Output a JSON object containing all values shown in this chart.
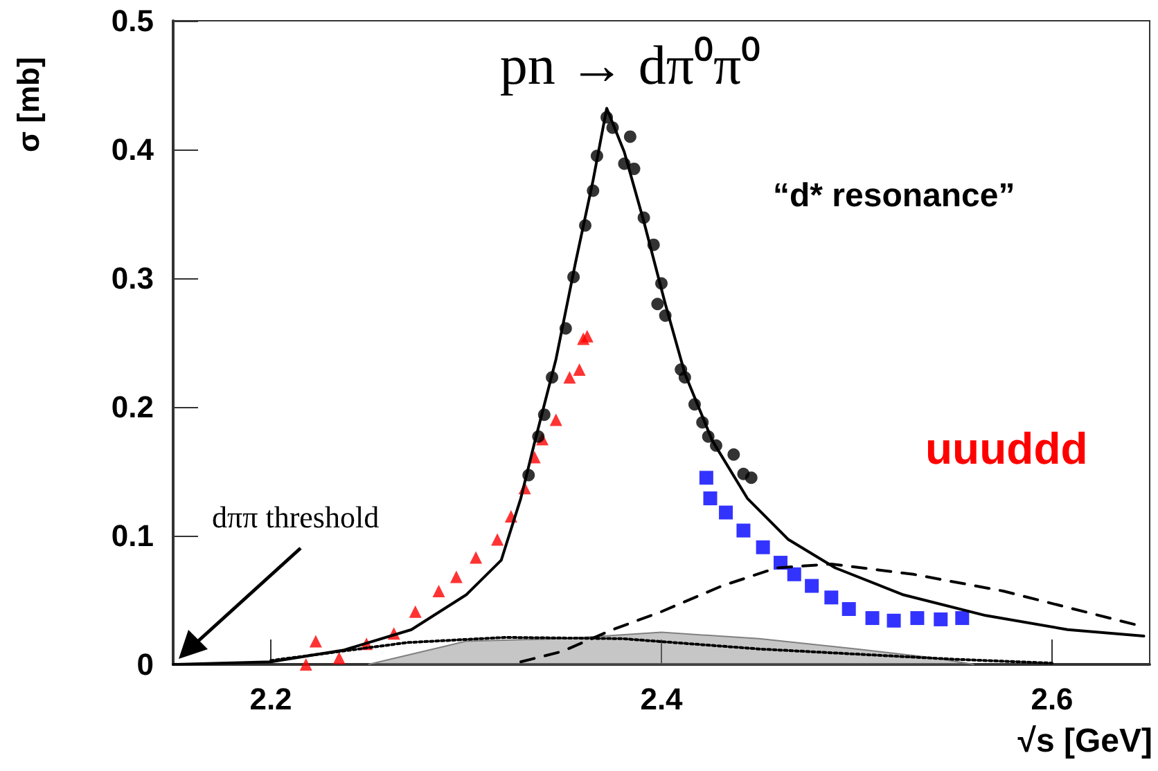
{
  "chart_data": {
    "type": "scatter",
    "title": "pn → dπ⁰π⁰",
    "xlabel": "√s [GeV]",
    "ylabel": "σ [mb]",
    "annotations": [
      "dππ threshold",
      "“d* resonance”",
      "uuuddd"
    ],
    "xlim": [
      2.15,
      2.65
    ],
    "xticks": [
      2.2,
      2.4,
      2.6
    ],
    "ylim": [
      0,
      0.5
    ],
    "yticks": [
      0,
      0.1,
      0.2,
      0.3,
      0.4,
      0.5
    ],
    "grid": false,
    "series": [
      {
        "type": "area",
        "color": "#808080",
        "marker": "none",
        "x": [
          2.25,
          2.3,
          2.35,
          2.4,
          2.45,
          2.5,
          2.54,
          2.56
        ],
        "values": [
          0,
          0.018,
          0.02,
          0.025,
          0.02,
          0.012,
          0.005,
          0
        ]
      },
      {
        "type": "line",
        "color": "#000000",
        "marker": "none",
        "line_style": "dotted",
        "x": [
          2.2,
          2.27,
          2.32,
          2.38,
          2.45,
          2.55,
          2.6
        ],
        "values": [
          0.003,
          0.017,
          0.021,
          0.02,
          0.012,
          0.004,
          0.001
        ]
      },
      {
        "type": "line",
        "color": "#000000",
        "marker": "none",
        "line_style": "dashed",
        "x": [
          2.328,
          2.349,
          2.375,
          2.4,
          2.431,
          2.459,
          2.487,
          2.529,
          2.575,
          2.645
        ],
        "values": [
          0.002,
          0.01,
          0.027,
          0.041,
          0.061,
          0.075,
          0.078,
          0.07,
          0.057,
          0.03
        ]
      },
      {
        "type": "line",
        "color": "#000000",
        "marker": "none",
        "line_style": "solid",
        "x": [
          2.15,
          2.2,
          2.237,
          2.272,
          2.3,
          2.318,
          2.328,
          2.335,
          2.346,
          2.356,
          2.365,
          2.372,
          2.381,
          2.391,
          2.402,
          2.412,
          2.426,
          2.444,
          2.465,
          2.489,
          2.524,
          2.566,
          2.608,
          2.647
        ],
        "values": [
          0,
          0.002,
          0.011,
          0.027,
          0.054,
          0.081,
          0.129,
          0.172,
          0.237,
          0.312,
          0.376,
          0.432,
          0.398,
          0.344,
          0.28,
          0.226,
          0.174,
          0.129,
          0.097,
          0.075,
          0.054,
          0.038,
          0.027,
          0.022
        ]
      },
      {
        "color": "#ff0000",
        "marker": "triangle",
        "x": [
          2.218,
          2.223,
          2.235,
          2.249,
          2.263,
          2.274,
          2.286,
          2.295,
          2.305,
          2.316,
          2.323,
          2.33,
          2.335,
          2.339,
          2.346,
          2.353,
          2.358,
          2.36,
          2.362
        ],
        "values": [
          0.0,
          0.018,
          0.005,
          0.016,
          0.024,
          0.041,
          0.057,
          0.068,
          0.083,
          0.097,
          0.115,
          0.137,
          0.161,
          0.175,
          0.19,
          0.223,
          0.229,
          0.253,
          0.255
        ]
      },
      {
        "color": "#0000ff",
        "marker": "square",
        "x": [
          2.423,
          2.425,
          2.433,
          2.442,
          2.452,
          2.461,
          2.468,
          2.477,
          2.487,
          2.496,
          2.508,
          2.519,
          2.531,
          2.543,
          2.554
        ],
        "values": [
          0.145,
          0.129,
          0.118,
          0.104,
          0.091,
          0.079,
          0.07,
          0.061,
          0.052,
          0.043,
          0.036,
          0.034,
          0.036,
          0.035,
          0.036
        ]
      },
      {
        "color": "#000000",
        "marker": "circle",
        "x": [
          2.332,
          2.337,
          2.34,
          2.344,
          2.351,
          2.355,
          2.361,
          2.365,
          2.367,
          2.372,
          2.375,
          2.381,
          2.384,
          2.386,
          2.391,
          2.396,
          2.398,
          2.4,
          2.402,
          2.41,
          2.412,
          2.417,
          2.421,
          2.424,
          2.428,
          2.437,
          2.442,
          2.446
        ],
        "values": [
          0.147,
          0.177,
          0.194,
          0.223,
          0.261,
          0.301,
          0.341,
          0.368,
          0.395,
          0.425,
          0.417,
          0.389,
          0.41,
          0.385,
          0.347,
          0.326,
          0.28,
          0.296,
          0.271,
          0.229,
          0.223,
          0.202,
          0.188,
          0.177,
          0.17,
          0.163,
          0.148,
          0.145
        ]
      }
    ]
  }
}
